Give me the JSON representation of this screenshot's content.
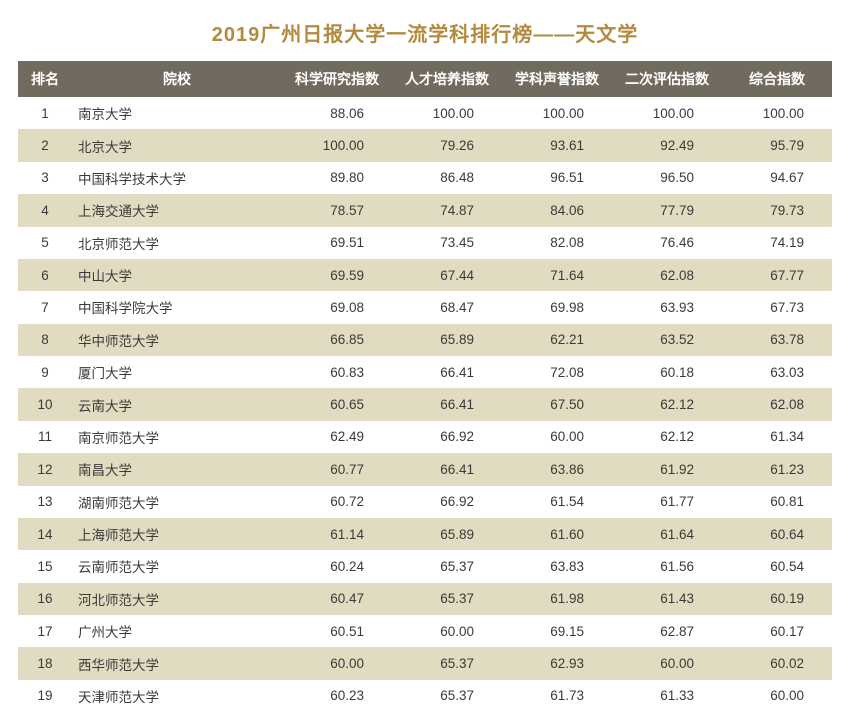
{
  "title": "2019广州日报大学一流学科排行榜——天文学",
  "colors": {
    "title": "#b38b3f",
    "header_bg": "#716b5f",
    "header_fg": "#ffffff",
    "row_odd": "#ffffff",
    "row_even": "#e0dbc1",
    "text": "#3a3a38"
  },
  "columns": [
    "排名",
    "院校",
    "科学研究指数",
    "人才培养指数",
    "学科声誉指数",
    "二次评估指数",
    "综合指数"
  ],
  "rows": [
    [
      "1",
      "南京大学",
      "88.06",
      "100.00",
      "100.00",
      "100.00",
      "100.00"
    ],
    [
      "2",
      "北京大学",
      "100.00",
      "79.26",
      "93.61",
      "92.49",
      "95.79"
    ],
    [
      "3",
      "中国科学技术大学",
      "89.80",
      "86.48",
      "96.51",
      "96.50",
      "94.67"
    ],
    [
      "4",
      "上海交通大学",
      "78.57",
      "74.87",
      "84.06",
      "77.79",
      "79.73"
    ],
    [
      "5",
      "北京师范大学",
      "69.51",
      "73.45",
      "82.08",
      "76.46",
      "74.19"
    ],
    [
      "6",
      "中山大学",
      "69.59",
      "67.44",
      "71.64",
      "62.08",
      "67.77"
    ],
    [
      "7",
      "中国科学院大学",
      "69.08",
      "68.47",
      "69.98",
      "63.93",
      "67.73"
    ],
    [
      "8",
      "华中师范大学",
      "66.85",
      "65.89",
      "62.21",
      "63.52",
      "63.78"
    ],
    [
      "9",
      "厦门大学",
      "60.83",
      "66.41",
      "72.08",
      "60.18",
      "63.03"
    ],
    [
      "10",
      "云南大学",
      "60.65",
      "66.41",
      "67.50",
      "62.12",
      "62.08"
    ],
    [
      "11",
      "南京师范大学",
      "62.49",
      "66.92",
      "60.00",
      "62.12",
      "61.34"
    ],
    [
      "12",
      "南昌大学",
      "60.77",
      "66.41",
      "63.86",
      "61.92",
      "61.23"
    ],
    [
      "13",
      "湖南师范大学",
      "60.72",
      "66.92",
      "61.54",
      "61.77",
      "60.81"
    ],
    [
      "14",
      "上海师范大学",
      "61.14",
      "65.89",
      "61.60",
      "61.64",
      "60.64"
    ],
    [
      "15",
      "云南师范大学",
      "60.24",
      "65.37",
      "63.83",
      "61.56",
      "60.54"
    ],
    [
      "16",
      "河北师范大学",
      "60.47",
      "65.37",
      "61.98",
      "61.43",
      "60.19"
    ],
    [
      "17",
      "广州大学",
      "60.51",
      "60.00",
      "69.15",
      "62.87",
      "60.17"
    ],
    [
      "18",
      "西华师范大学",
      "60.00",
      "65.37",
      "62.93",
      "60.00",
      "60.02"
    ],
    [
      "19",
      "天津师范大学",
      "60.23",
      "65.37",
      "61.73",
      "61.33",
      "60.00"
    ]
  ]
}
